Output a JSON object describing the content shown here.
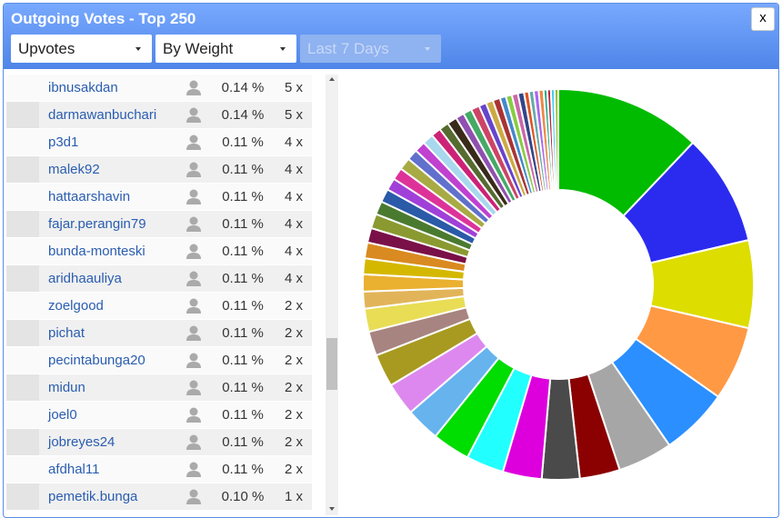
{
  "header": {
    "title": "Outgoing Votes - Top 250",
    "close": "x",
    "filters": [
      "Upvotes",
      "By Weight",
      "Last 7 Days"
    ]
  },
  "table": {
    "rows": [
      [
        "ibnusakdan",
        "0.14 %",
        "5 x"
      ],
      [
        "darmawanbuchari",
        "0.14 %",
        "5 x"
      ],
      [
        "p3d1",
        "0.11 %",
        "4 x"
      ],
      [
        "malek92",
        "0.11 %",
        "4 x"
      ],
      [
        "hattaarshavin",
        "0.11 %",
        "4 x"
      ],
      [
        "fajar.perangin79",
        "0.11 %",
        "4 x"
      ],
      [
        "bunda-monteski",
        "0.11 %",
        "4 x"
      ],
      [
        "aridhaauliya",
        "0.11 %",
        "4 x"
      ],
      [
        "zoelgood",
        "0.11 %",
        "2 x"
      ],
      [
        "pichat",
        "0.11 %",
        "2 x"
      ],
      [
        "pecintabunga20",
        "0.11 %",
        "2 x"
      ],
      [
        "midun",
        "0.11 %",
        "2 x"
      ],
      [
        "joel0",
        "0.11 %",
        "2 x"
      ],
      [
        "jobreyes24",
        "0.11 %",
        "2 x"
      ],
      [
        "afdhal11",
        "0.11 %",
        "2 x"
      ],
      [
        "pemetik.bunga",
        "0.10 %",
        "1 x"
      ]
    ]
  },
  "donut": {
    "type": "pie",
    "values": [
      12,
      9.2,
      7.2,
      6.1,
      5.6,
      4.5,
      3.3,
      3.1,
      3.2,
      3.1,
      3.1,
      2.8,
      2.7,
      2.7,
      2,
      1.9,
      1.4,
      1.4,
      1.3,
      1.3,
      1.2,
      1.2,
      1.1,
      1.1,
      1,
      1,
      1,
      0.9,
      0.9,
      0.9,
      0.8,
      0.8,
      0.8,
      0.7,
      0.7,
      0.7,
      0.6,
      0.6,
      0.6,
      0.5,
      0.5,
      0.5,
      0.5,
      0.4,
      0.4,
      0.4,
      0.4,
      0.3,
      0.3,
      0.3,
      0.3
    ],
    "colors": [
      "#00bb00",
      "#2b2bf0",
      "#dddd00",
      "#ff9944",
      "#2b8fff",
      "#a6a6a6",
      "#8b0000",
      "#4a4a4a",
      "#dd00dd",
      "#22ffff",
      "#00dd00",
      "#66b3ee",
      "#dd88ee",
      "#a89a20",
      "#a88480",
      "#e8dd55",
      "#e2b45a",
      "#eab030",
      "#d4b800",
      "#d98a20",
      "#7a1048",
      "#8a9a30",
      "#4a7a30",
      "#2a5aa8",
      "#a040d8",
      "#dd3399",
      "#a8aa44",
      "#6070cc",
      "#c040d0",
      "#a8d8ee",
      "#cc2277",
      "#556b2f",
      "#3a2a1a",
      "#9050b0",
      "#44aa66",
      "#cc4466",
      "#6644cc",
      "#ccaa44",
      "#aa3333",
      "#4488cc",
      "#88cc44",
      "#cc66aa",
      "#334488",
      "#dd5522",
      "#66aaaa",
      "#aa66ee",
      "#ee8844",
      "#22aa88",
      "#bb2244",
      "#44ccee",
      "#99bb33"
    ]
  }
}
